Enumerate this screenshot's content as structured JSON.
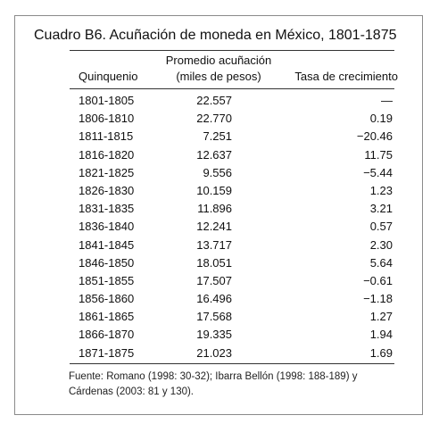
{
  "title": "Cuadro B6. Acuñación de moneda en México, 1801-1875",
  "headers": {
    "quinquenio": "Quinquenio",
    "promedio_line1": "Promedio acuñación",
    "promedio_line2": "(miles de pesos)",
    "tasa": "Tasa de crecimiento"
  },
  "rows": [
    {
      "quinquenio": "1801-1805",
      "promedio": "22.557",
      "tasa": "—"
    },
    {
      "quinquenio": "1806-1810",
      "promedio": "22.770",
      "tasa": "0.19"
    },
    {
      "quinquenio": "1811-1815",
      "promedio": "7.251",
      "tasa": "−20.46"
    },
    {
      "quinquenio": "1816-1820",
      "promedio": "12.637",
      "tasa": "11.75"
    },
    {
      "quinquenio": "1821-1825",
      "promedio": "9.556",
      "tasa": "−5.44"
    },
    {
      "quinquenio": "1826-1830",
      "promedio": "10.159",
      "tasa": "1.23"
    },
    {
      "quinquenio": "1831-1835",
      "promedio": "11.896",
      "tasa": "3.21"
    },
    {
      "quinquenio": "1836-1840",
      "promedio": "12.241",
      "tasa": "0.57"
    },
    {
      "quinquenio": "1841-1845",
      "promedio": "13.717",
      "tasa": "2.30"
    },
    {
      "quinquenio": "1846-1850",
      "promedio": "18.051",
      "tasa": "5.64"
    },
    {
      "quinquenio": "1851-1855",
      "promedio": "17.507",
      "tasa": "−0.61"
    },
    {
      "quinquenio": "1856-1860",
      "promedio": "16.496",
      "tasa": "−1.18"
    },
    {
      "quinquenio": "1861-1865",
      "promedio": "17.568",
      "tasa": "1.27"
    },
    {
      "quinquenio": "1866-1870",
      "promedio": "19.335",
      "tasa": "1.94"
    },
    {
      "quinquenio": "1871-1875",
      "promedio": "21.023",
      "tasa": "1.69"
    }
  ],
  "note": "Fuente: Romano (1998: 30-32); Ibarra Bellón (1998: 188-189) y Cárdenas (2003: 81 y 130)."
}
